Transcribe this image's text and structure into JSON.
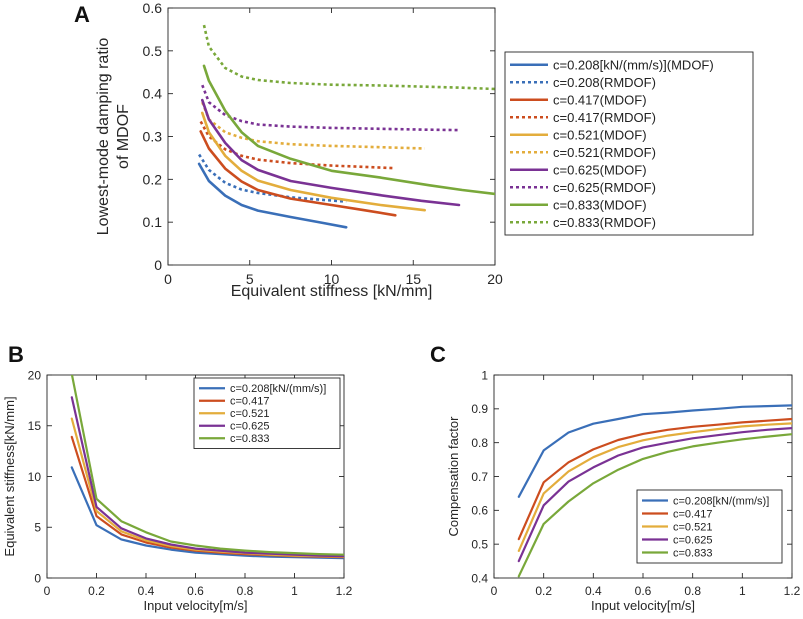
{
  "panel_letters": {
    "a": "A",
    "b": "B",
    "c": "C"
  },
  "colors": {
    "c0208": "#3a6fb8",
    "c0417": "#cc4d1f",
    "c0521": "#e3ad3c",
    "c0625": "#7a3294",
    "c0833": "#79a83a"
  },
  "chart_data": [
    {
      "id": "A",
      "type": "line",
      "xlabel": "Equivalent stiffness [kN/mm]",
      "ylabel_lines": [
        "Lowest-mode damping ratio",
        "of MDOF"
      ],
      "xlim": [
        0,
        20
      ],
      "ylim": [
        0,
        0.6
      ],
      "xticks": [
        0,
        5,
        10,
        15,
        20
      ],
      "yticks": [
        0,
        0.1,
        0.2,
        0.3,
        0.4,
        0.5,
        0.6
      ],
      "legend_position": "right",
      "series": [
        {
          "name": "c=0.208[kN/(mm/s)](MDOF)",
          "color_key": "c0208",
          "style": "solid",
          "x": [
            1.9,
            2.5,
            3.5,
            4.5,
            5.5,
            7.5,
            9.5,
            10.9
          ],
          "y": [
            0.236,
            0.196,
            0.162,
            0.14,
            0.127,
            0.112,
            0.098,
            0.088
          ]
        },
        {
          "name": "c=0.208(RMDOF)",
          "color_key": "c0208",
          "style": "dotted",
          "x": [
            1.9,
            2.5,
            3.5,
            4.5,
            5.5,
            7.5,
            9.5,
            10.9
          ],
          "y": [
            0.258,
            0.222,
            0.192,
            0.176,
            0.168,
            0.158,
            0.152,
            0.148
          ]
        },
        {
          "name": "c=0.417(MDOF)",
          "color_key": "c0417",
          "style": "solid",
          "x": [
            2.0,
            2.5,
            3.5,
            4.5,
            5.5,
            7.5,
            10,
            12,
            13.9
          ],
          "y": [
            0.312,
            0.272,
            0.225,
            0.195,
            0.175,
            0.155,
            0.14,
            0.128,
            0.116
          ]
        },
        {
          "name": "c=0.417(RMDOF)",
          "color_key": "c0417",
          "style": "dotted",
          "x": [
            2.0,
            2.5,
            3.5,
            4.5,
            5.5,
            7.5,
            10,
            12,
            13.9
          ],
          "y": [
            0.335,
            0.3,
            0.27,
            0.255,
            0.246,
            0.238,
            0.232,
            0.229,
            0.226
          ]
        },
        {
          "name": "c=0.521(MDOF)",
          "color_key": "c0521",
          "style": "solid",
          "x": [
            2.1,
            2.5,
            3.5,
            4.5,
            5.5,
            7.5,
            10,
            13,
            15.7
          ],
          "y": [
            0.355,
            0.31,
            0.255,
            0.22,
            0.197,
            0.175,
            0.157,
            0.14,
            0.128
          ]
        },
        {
          "name": "c=0.521(RMDOF)",
          "color_key": "c0521",
          "style": "dotted",
          "x": [
            2.1,
            2.5,
            3.5,
            4.5,
            5.5,
            7.5,
            10,
            13,
            15.7
          ],
          "y": [
            0.38,
            0.34,
            0.31,
            0.297,
            0.289,
            0.282,
            0.278,
            0.275,
            0.272
          ]
        },
        {
          "name": "c=0.625(MDOF)",
          "color_key": "c0625",
          "style": "solid",
          "x": [
            2.1,
            2.5,
            3.5,
            4.5,
            5.5,
            7.5,
            10,
            13,
            15.5,
            17.8
          ],
          "y": [
            0.385,
            0.34,
            0.285,
            0.245,
            0.222,
            0.196,
            0.18,
            0.163,
            0.15,
            0.14
          ]
        },
        {
          "name": "c=0.625(RMDOF)",
          "color_key": "c0625",
          "style": "dotted",
          "x": [
            2.1,
            2.5,
            3.5,
            4.5,
            5.5,
            7.5,
            10,
            13,
            15.5,
            17.8
          ],
          "y": [
            0.42,
            0.38,
            0.35,
            0.336,
            0.328,
            0.323,
            0.32,
            0.318,
            0.316,
            0.315
          ]
        },
        {
          "name": "c=0.833(MDOF)",
          "color_key": "c0833",
          "style": "solid",
          "x": [
            2.2,
            2.5,
            3.5,
            4.5,
            5.5,
            7.5,
            10,
            13,
            16,
            18,
            20
          ],
          "y": [
            0.465,
            0.43,
            0.36,
            0.31,
            0.278,
            0.248,
            0.22,
            0.204,
            0.186,
            0.175,
            0.166
          ]
        },
        {
          "name": "c=0.833(RMDOF)",
          "color_key": "c0833",
          "style": "dotted",
          "x": [
            2.2,
            2.5,
            3.5,
            4.5,
            5.5,
            7.5,
            10,
            13,
            16,
            18,
            20
          ],
          "y": [
            0.56,
            0.51,
            0.46,
            0.44,
            0.432,
            0.425,
            0.421,
            0.419,
            0.416,
            0.414,
            0.411
          ]
        }
      ]
    },
    {
      "id": "B",
      "type": "line",
      "xlabel": "Input velocity[m/s]",
      "ylabel": "Equivalent stiffness[kN/mm]",
      "xlim": [
        0,
        1.2
      ],
      "ylim": [
        0,
        20
      ],
      "xticks": [
        0,
        0.2,
        0.4,
        0.6,
        0.8,
        1,
        1.2
      ],
      "yticks": [
        0,
        5,
        10,
        15,
        20
      ],
      "legend_position": "top-right",
      "x": [
        0.1,
        0.2,
        0.3,
        0.4,
        0.5,
        0.6,
        0.7,
        0.8,
        0.9,
        1.0,
        1.1,
        1.2
      ],
      "series": [
        {
          "name": "c=0.208[kN/(mm/s)]",
          "color_key": "c0208",
          "values": [
            10.9,
            5.2,
            3.8,
            3.2,
            2.8,
            2.5,
            2.35,
            2.2,
            2.1,
            2.05,
            2.0,
            1.95
          ]
        },
        {
          "name": "c=0.417",
          "color_key": "c0417",
          "values": [
            13.9,
            6.1,
            4.3,
            3.5,
            3.0,
            2.7,
            2.5,
            2.35,
            2.25,
            2.15,
            2.1,
            2.05
          ]
        },
        {
          "name": "c=0.521",
          "color_key": "c0521",
          "values": [
            15.7,
            6.6,
            4.6,
            3.7,
            3.15,
            2.8,
            2.6,
            2.45,
            2.3,
            2.2,
            2.15,
            2.1
          ]
        },
        {
          "name": "c=0.625",
          "color_key": "c0625",
          "values": [
            17.8,
            7.0,
            4.9,
            3.9,
            3.3,
            2.9,
            2.7,
            2.5,
            2.4,
            2.3,
            2.2,
            2.15
          ]
        },
        {
          "name": "c=0.833",
          "color_key": "c0833",
          "values": [
            20.1,
            7.8,
            5.6,
            4.5,
            3.6,
            3.2,
            2.9,
            2.7,
            2.55,
            2.45,
            2.35,
            2.3
          ]
        }
      ]
    },
    {
      "id": "C",
      "type": "line",
      "xlabel": "Input velocity[m/s]",
      "ylabel": "Compensation factor",
      "xlim": [
        0,
        1.2
      ],
      "ylim": [
        0.4,
        1
      ],
      "xticks": [
        0,
        0.2,
        0.4,
        0.6,
        0.8,
        1,
        1.2
      ],
      "yticks": [
        0.4,
        0.5,
        0.6,
        0.7,
        0.8,
        0.9,
        1
      ],
      "legend_position": "bottom-right",
      "x": [
        0.1,
        0.2,
        0.3,
        0.4,
        0.5,
        0.6,
        0.7,
        0.8,
        0.9,
        1.0,
        1.1,
        1.2
      ],
      "series": [
        {
          "name": "c=0.208[kN/(mm/s)]",
          "color_key": "c0208",
          "values": [
            0.64,
            0.777,
            0.83,
            0.856,
            0.87,
            0.884,
            0.889,
            0.895,
            0.9,
            0.906,
            0.908,
            0.91
          ]
        },
        {
          "name": "c=0.417",
          "color_key": "c0417",
          "values": [
            0.515,
            0.683,
            0.742,
            0.78,
            0.808,
            0.826,
            0.838,
            0.847,
            0.853,
            0.86,
            0.865,
            0.87
          ]
        },
        {
          "name": "c=0.521",
          "color_key": "c0521",
          "values": [
            0.48,
            0.65,
            0.715,
            0.757,
            0.787,
            0.807,
            0.821,
            0.831,
            0.84,
            0.848,
            0.853,
            0.857
          ]
        },
        {
          "name": "c=0.625",
          "color_key": "c0625",
          "values": [
            0.45,
            0.615,
            0.685,
            0.727,
            0.762,
            0.786,
            0.8,
            0.813,
            0.822,
            0.831,
            0.838,
            0.843
          ]
        },
        {
          "name": "c=0.833",
          "color_key": "c0833",
          "values": [
            0.405,
            0.56,
            0.626,
            0.68,
            0.72,
            0.752,
            0.773,
            0.789,
            0.8,
            0.81,
            0.818,
            0.825
          ]
        }
      ]
    }
  ]
}
